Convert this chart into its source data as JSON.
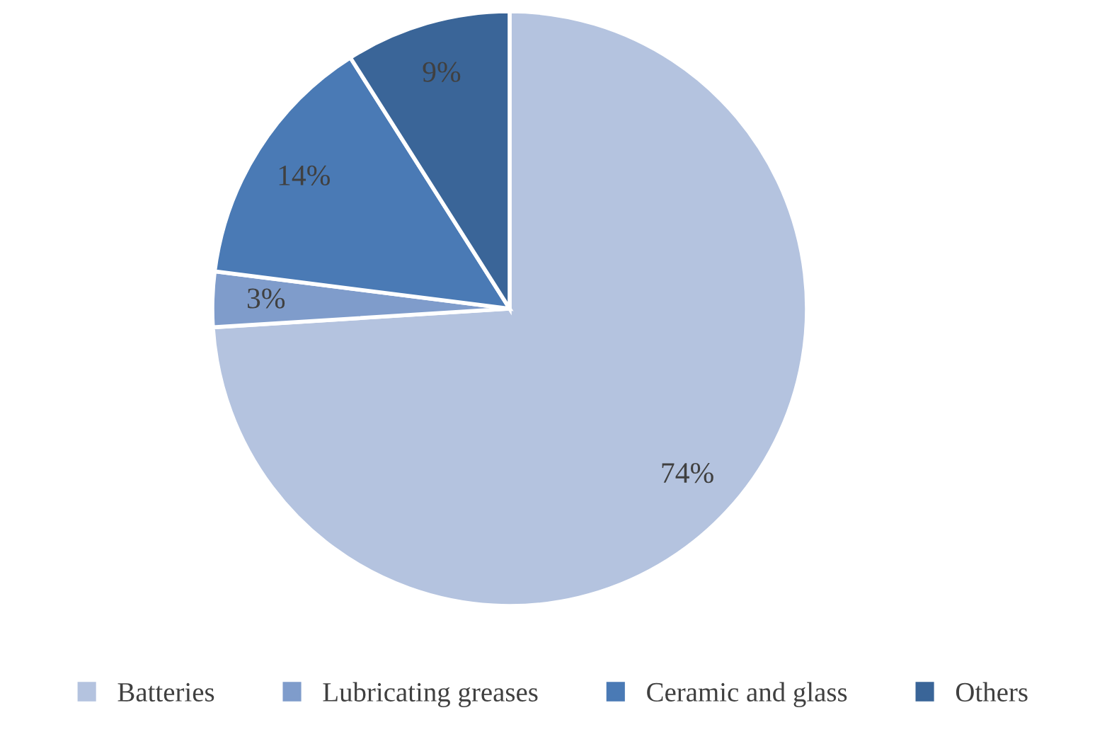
{
  "chart_data": {
    "type": "pie",
    "categories": [
      "Batteries",
      "Lubricating greases",
      "Ceramic and glass",
      "Others"
    ],
    "values": [
      74,
      3,
      14,
      9
    ],
    "colors": [
      "#b4c3df",
      "#7f9ccb",
      "#4a7ab5",
      "#3a6598"
    ],
    "value_labels": [
      "74%",
      "3%",
      "14%",
      "9%"
    ],
    "legend": "bottom"
  }
}
